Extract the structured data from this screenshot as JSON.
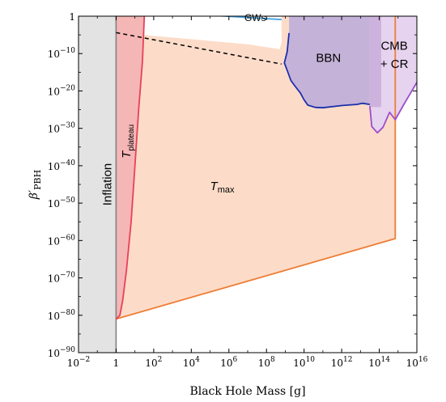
{
  "chart_data": {
    "type": "area",
    "title": "",
    "xlabel": "Black Hole Mass [g]",
    "ylabel": "β′",
    "ylabel_sub": "PBH",
    "x_scale": "log",
    "y_scale": "log",
    "xlim_log10": [
      -2,
      16
    ],
    "ylim_log10": [
      -90,
      0
    ],
    "x_ticks": [
      {
        "log": -2,
        "base": "10",
        "exp": "−2"
      },
      {
        "log": 0,
        "base": "1",
        "exp": ""
      },
      {
        "log": 2,
        "base": "10",
        "exp": "2"
      },
      {
        "log": 4,
        "base": "10",
        "exp": "4"
      },
      {
        "log": 6,
        "base": "10",
        "exp": "6"
      },
      {
        "log": 8,
        "base": "10",
        "exp": "8"
      },
      {
        "log": 10,
        "base": "10",
        "exp": "10"
      },
      {
        "log": 12,
        "base": "10",
        "exp": "12"
      },
      {
        "log": 14,
        "base": "10",
        "exp": "14"
      },
      {
        "log": 16,
        "base": "10",
        "exp": "16"
      }
    ],
    "y_ticks": [
      {
        "log": 0,
        "base": "1",
        "exp": ""
      },
      {
        "log": -10,
        "base": "10",
        "exp": "−10"
      },
      {
        "log": -20,
        "base": "10",
        "exp": "−20"
      },
      {
        "log": -30,
        "base": "10",
        "exp": "−30"
      },
      {
        "log": -40,
        "base": "10",
        "exp": "−40"
      },
      {
        "log": -50,
        "base": "10",
        "exp": "−50"
      },
      {
        "log": -60,
        "base": "10",
        "exp": "−60"
      },
      {
        "log": -70,
        "base": "10",
        "exp": "−70"
      },
      {
        "log": -80,
        "base": "10",
        "exp": "−80"
      },
      {
        "log": -90,
        "base": "10",
        "exp": "−90"
      }
    ],
    "regions": [
      {
        "id": "inflation",
        "label": "Inflation",
        "fill": "#e3e3e3",
        "stroke": "#808080",
        "points": [
          [
            -2,
            0
          ],
          [
            0,
            0
          ],
          [
            0,
            -90
          ],
          [
            -2,
            -90
          ]
        ]
      },
      {
        "id": "tmax",
        "label": "T",
        "label_sub": "max",
        "fill": "#fcdcc8",
        "stroke": "#ee7d35",
        "points": [
          [
            0,
            -4.4
          ],
          [
            7.0,
            -7.5
          ],
          [
            8.7,
            -8.8
          ],
          [
            8.8,
            -7
          ],
          [
            8.8,
            0
          ],
          [
            9.5,
            0
          ],
          [
            14.85,
            0
          ],
          [
            14.85,
            -59.5
          ],
          [
            0,
            -81
          ]
        ]
      },
      {
        "id": "tplateau",
        "label": "T",
        "label_sub": "plateau",
        "fill": "#f5b6b6",
        "stroke": "#e8405a",
        "points": [
          [
            0,
            0
          ],
          [
            1.5,
            0
          ],
          [
            1.4,
            -12
          ],
          [
            1.2,
            -25
          ],
          [
            1.0,
            -40
          ],
          [
            0.8,
            -55
          ],
          [
            0.55,
            -68
          ],
          [
            0.35,
            -76
          ],
          [
            0.2,
            -80
          ],
          [
            0,
            -81
          ]
        ]
      },
      {
        "id": "bbn",
        "label": "BBN",
        "fill": "#c4b2d8",
        "stroke": "#1b2fae",
        "points": [
          [
            9.2,
            0
          ],
          [
            13.5,
            0
          ],
          [
            13.5,
            -23.6
          ],
          [
            13.1,
            -23.3
          ],
          [
            12.8,
            -23.6
          ],
          [
            12.0,
            -23.9
          ],
          [
            11.0,
            -24.5
          ],
          [
            10.6,
            -24.4
          ],
          [
            10.2,
            -23.8
          ],
          [
            10.0,
            -22.4
          ],
          [
            9.8,
            -20.5
          ],
          [
            9.5,
            -18.6
          ],
          [
            9.3,
            -17.2
          ],
          [
            9.1,
            -14.5
          ],
          [
            8.95,
            -12.5
          ],
          [
            9.1,
            -9.5
          ],
          [
            9.2,
            -4.5
          ],
          [
            9.2,
            0
          ]
        ]
      },
      {
        "id": "cmbcr",
        "label": "CMB",
        "label2": "+ CR",
        "fill": "#e6d3ef",
        "stroke": "#9b4ecb",
        "points": [
          [
            13.5,
            0
          ],
          [
            16,
            0
          ],
          [
            16,
            -17.7
          ],
          [
            15.3,
            -23.7
          ],
          [
            14.85,
            -27.7
          ],
          [
            14.55,
            -25.7
          ],
          [
            14.2,
            -29.7
          ],
          [
            13.9,
            -31.2
          ],
          [
            13.6,
            -29.5
          ],
          [
            13.5,
            -24
          ],
          [
            13.5,
            0
          ]
        ]
      }
    ],
    "lines": [
      {
        "id": "gws",
        "label": "GWs",
        "color": "#4aa5e3",
        "points": [
          [
            0,
            1.8
          ],
          [
            8.8,
            -0.9
          ]
        ]
      },
      {
        "id": "tmax-dashed",
        "label": "",
        "color": "#000000",
        "dashed": true,
        "points": [
          [
            0,
            -4.4
          ],
          [
            8.8,
            -12.8
          ]
        ]
      }
    ],
    "grid": false,
    "legend": "none"
  }
}
